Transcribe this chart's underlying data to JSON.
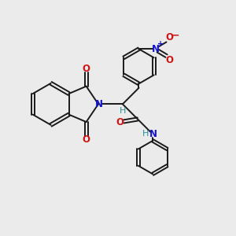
{
  "background_color": "#ebebeb",
  "bond_color": "#1a1a1a",
  "N_color": "#1414cc",
  "O_color": "#cc1414",
  "H_color": "#2a9090",
  "figsize": [
    3.0,
    3.0
  ],
  "dpi": 100,
  "xlim": [
    0,
    10
  ],
  "ylim": [
    0,
    10
  ]
}
